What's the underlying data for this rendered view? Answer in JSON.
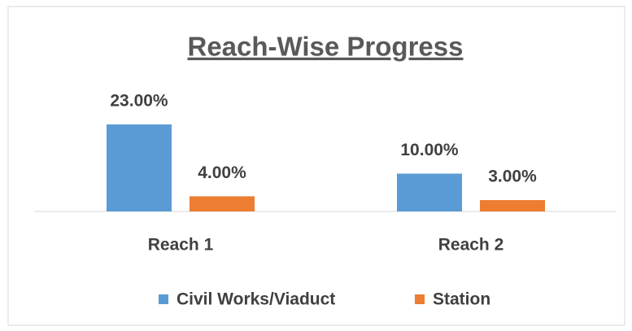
{
  "chart_data": {
    "type": "bar",
    "title": "Reach-Wise Progress",
    "categories": [
      "Reach 1",
      "Reach 2"
    ],
    "series": [
      {
        "name": "Civil Works/Viaduct",
        "color": "#5b9bd5",
        "values": [
          23,
          10
        ],
        "value_labels": [
          "23.00%",
          "10.00%"
        ]
      },
      {
        "name": "Station",
        "color": "#ed7d31",
        "values": [
          4,
          3
        ],
        "value_labels": [
          "4.00%",
          "3.00%"
        ]
      }
    ],
    "legend": "bottom"
  }
}
